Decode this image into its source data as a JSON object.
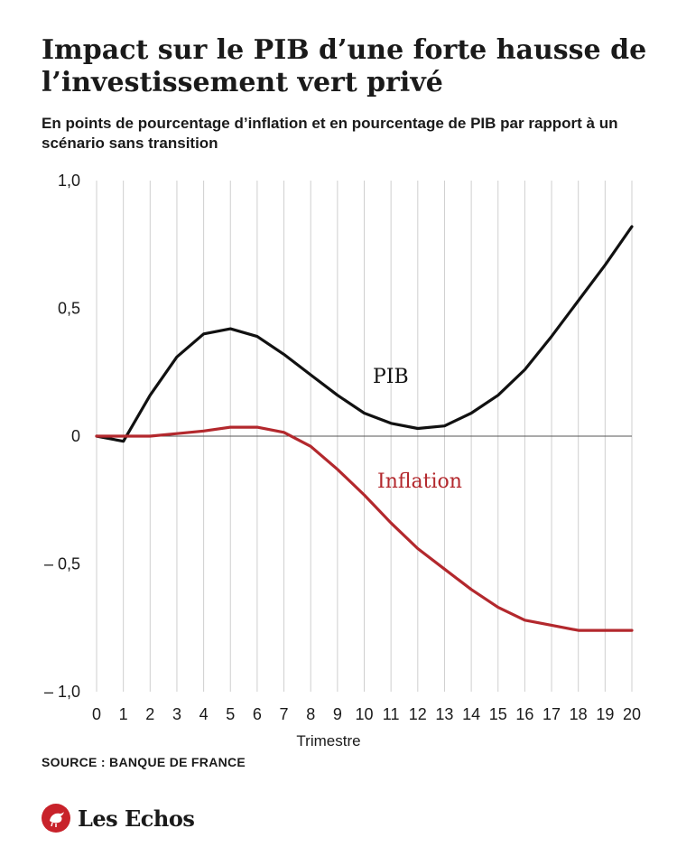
{
  "header": {
    "title": "Impact sur le PIB d’une forte hausse de l’investissement vert privé",
    "subtitle": "En points de pourcentage d’inflation et en pourcentage de PIB par rapport à un scénario sans transition"
  },
  "chart_data": {
    "type": "line",
    "xlabel": "Trimestre",
    "ylabel": "",
    "x": [
      0,
      1,
      2,
      3,
      4,
      5,
      6,
      7,
      8,
      9,
      10,
      11,
      12,
      13,
      14,
      15,
      16,
      17,
      18,
      19,
      20
    ],
    "xlim": [
      0,
      20
    ],
    "ylim": [
      -1.0,
      1.0
    ],
    "y_ticks": [
      1.0,
      0.5,
      0,
      -0.5,
      -1.0
    ],
    "y_tick_labels": [
      "1,0",
      "0,5",
      "0",
      "– 0,5",
      "– 1,0"
    ],
    "x_ticks": [
      0,
      1,
      2,
      3,
      4,
      5,
      6,
      7,
      8,
      9,
      10,
      11,
      12,
      13,
      14,
      15,
      16,
      17,
      18,
      19,
      20
    ],
    "x_tick_labels": [
      "0",
      "1",
      "2",
      "3",
      "4",
      "5",
      "6",
      "7",
      "8",
      "9",
      "10",
      "11",
      "12",
      "13",
      "14",
      "15",
      "16",
      "17",
      "18",
      "19",
      "20"
    ],
    "grid": "vertical",
    "series": [
      {
        "name": "PIB",
        "color": "#111111",
        "values": [
          0,
          -0.02,
          0.16,
          0.31,
          0.4,
          0.42,
          0.39,
          0.32,
          0.24,
          0.16,
          0.09,
          0.05,
          0.03,
          0.04,
          0.09,
          0.16,
          0.26,
          0.39,
          0.53,
          0.67,
          0.82
        ]
      },
      {
        "name": "Inflation",
        "color": "#b3282d",
        "values": [
          0,
          0,
          0,
          0.01,
          0.02,
          0.035,
          0.035,
          0.015,
          -0.04,
          -0.13,
          -0.23,
          -0.34,
          -0.44,
          -0.52,
          -0.6,
          -0.67,
          -0.72,
          -0.74,
          -0.76,
          -0.76,
          -0.76
        ]
      }
    ]
  },
  "footer": {
    "source": "SOURCE : BANQUE DE FRANCE",
    "logo_text": "Les Echos",
    "logo_color": "#c8222a"
  }
}
